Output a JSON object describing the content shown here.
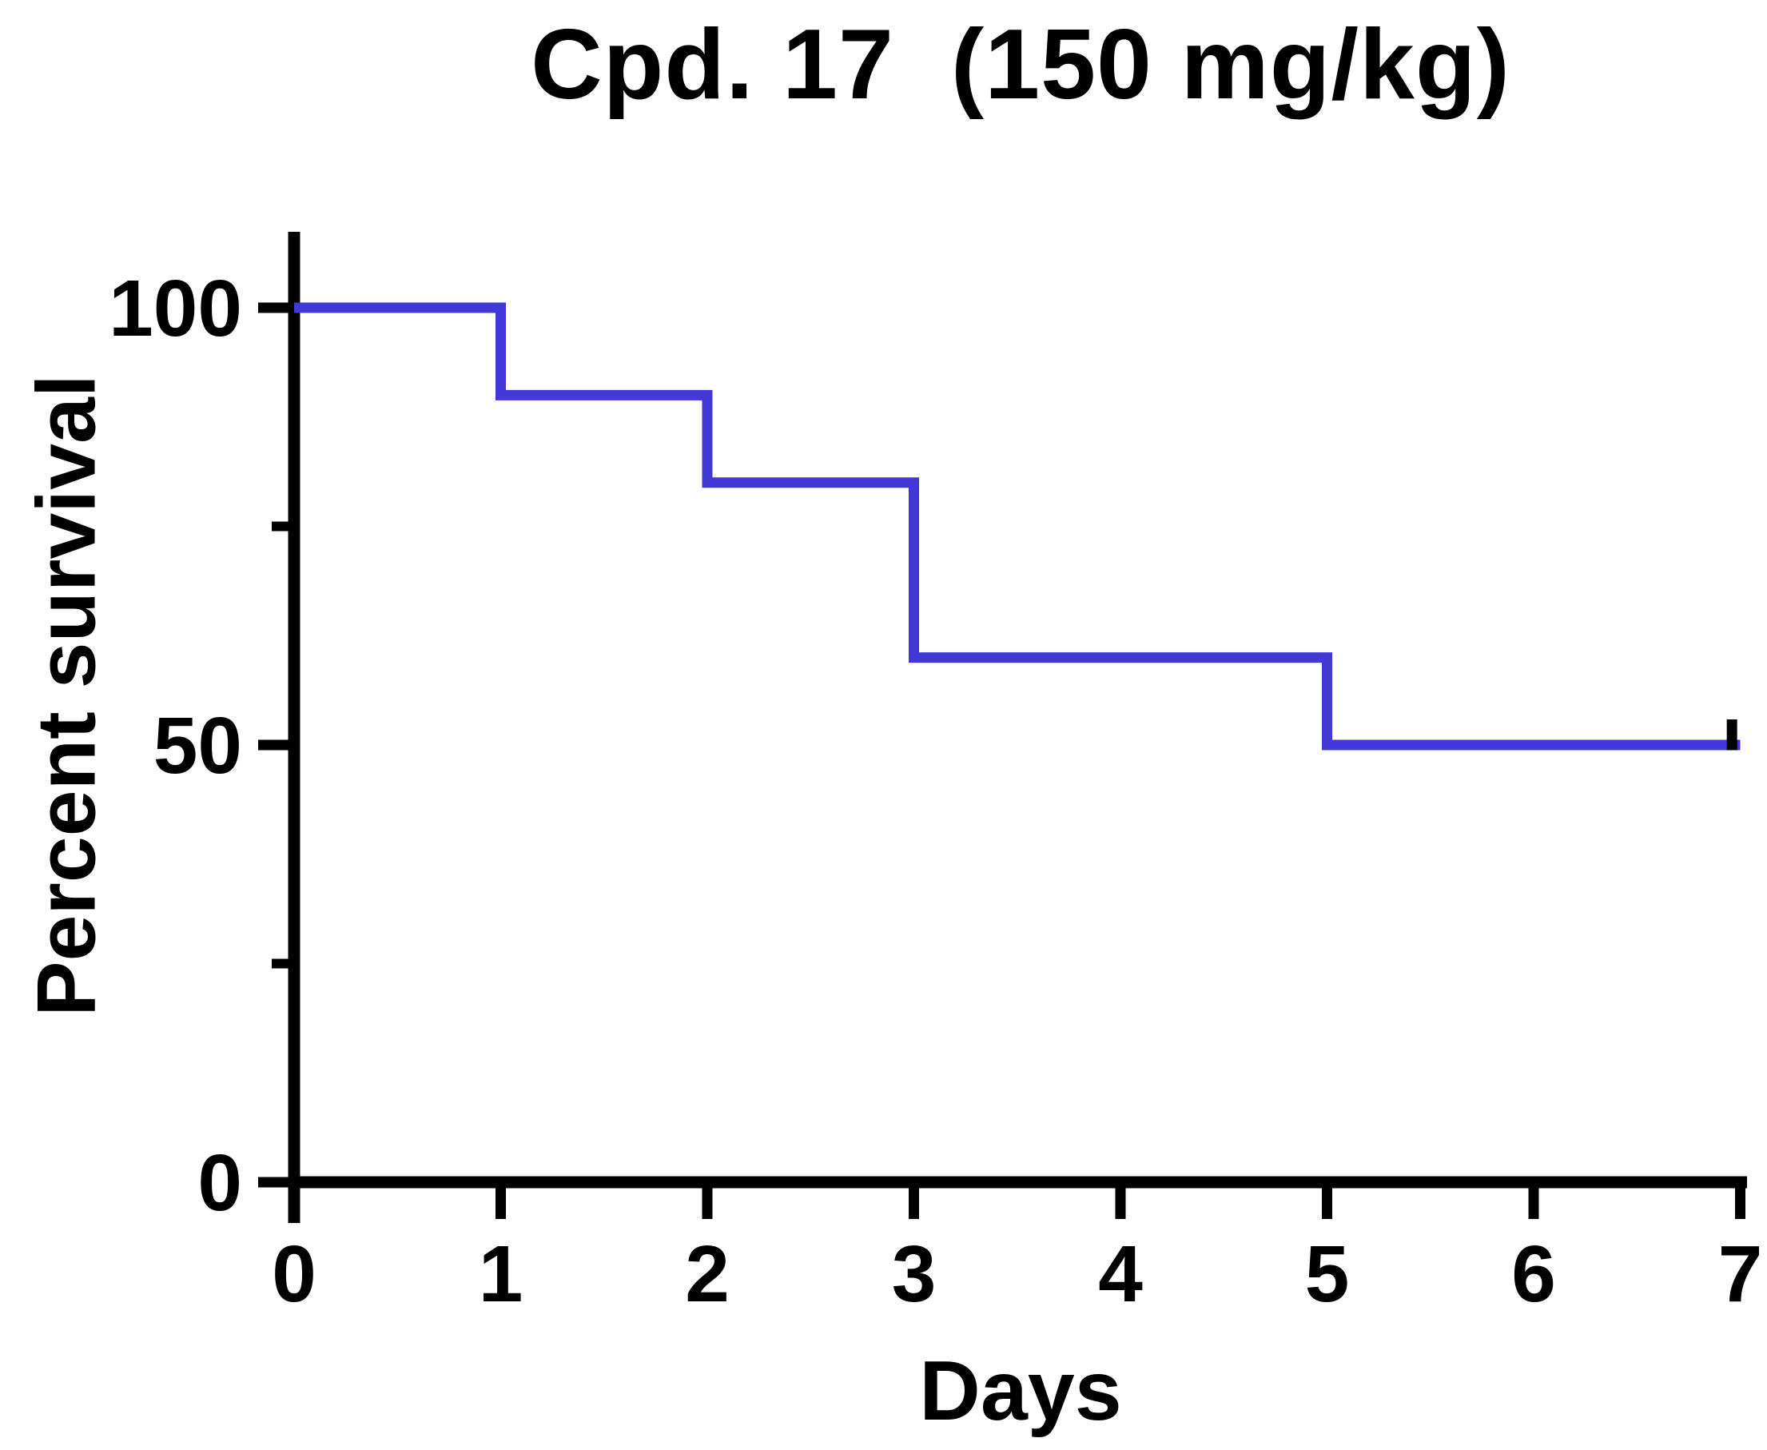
{
  "title": "Cpd. 17  (150 mg/kg)",
  "y_axis": {
    "label": "Percent survival",
    "major_ticks": [
      0,
      50,
      100
    ],
    "minor_ticks": [
      25,
      75
    ],
    "range": [
      0,
      100
    ]
  },
  "x_axis": {
    "label": "Days",
    "ticks": [
      0,
      1,
      2,
      3,
      4,
      5,
      6,
      7
    ],
    "range": [
      0,
      7
    ]
  },
  "colors": {
    "curve": "#4238d6",
    "axis": "#000000",
    "censor_mark": "#000000"
  },
  "chart_data": {
    "type": "line",
    "subtype": "kaplan-meier-step",
    "title": "Cpd. 17  (150 mg/kg)",
    "xlabel": "Days",
    "ylabel": "Percent survival",
    "xlim": [
      0,
      7
    ],
    "ylim": [
      0,
      100
    ],
    "grid": false,
    "legend": "none",
    "series": [
      {
        "name": "Cpd. 17 (150 mg/kg)",
        "step_points": [
          [
            0,
            100
          ],
          [
            1,
            100
          ],
          [
            1,
            90
          ],
          [
            2,
            90
          ],
          [
            2,
            80
          ],
          [
            3,
            80
          ],
          [
            3,
            60
          ],
          [
            5,
            60
          ],
          [
            5,
            50
          ],
          [
            7,
            50
          ]
        ],
        "drop_events": [
          {
            "day": 1,
            "survival_after": 90
          },
          {
            "day": 2,
            "survival_after": 80
          },
          {
            "day": 3,
            "survival_after": 60
          },
          {
            "day": 5,
            "survival_after": 50
          }
        ],
        "censor_marks": [
          [
            6.96,
            50
          ]
        ]
      }
    ]
  }
}
